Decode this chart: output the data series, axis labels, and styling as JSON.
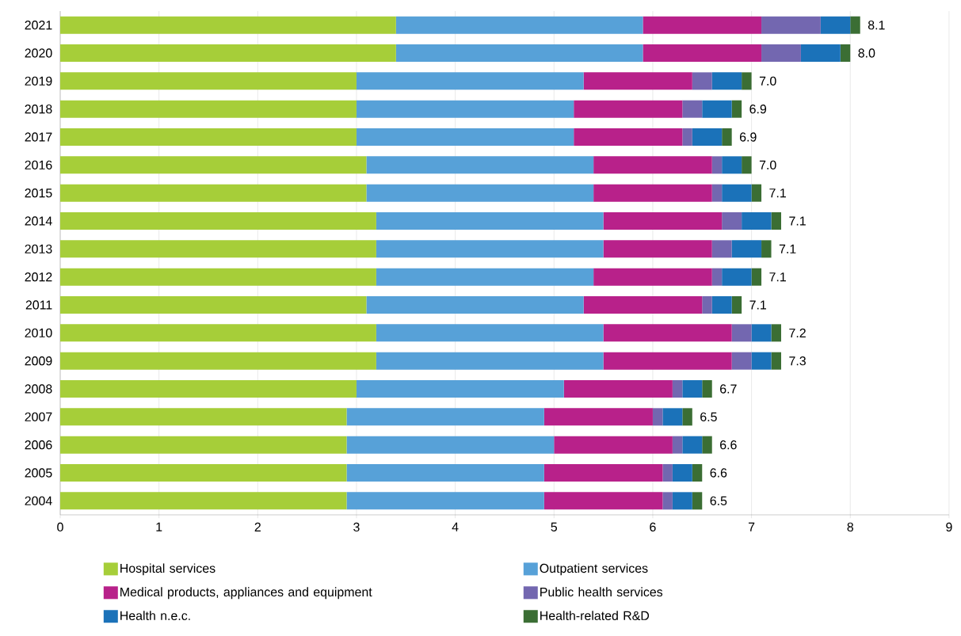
{
  "chart_data": {
    "type": "bar",
    "orientation": "horizontal",
    "stacked": true,
    "categories": [
      "2021",
      "2020",
      "2019",
      "2018",
      "2017",
      "2016",
      "2015",
      "2014",
      "2013",
      "2012",
      "2011",
      "2010",
      "2009",
      "2008",
      "2007",
      "2006",
      "2005",
      "2004"
    ],
    "series": [
      {
        "name": "Hospital services",
        "color": "#a6ce39",
        "values": [
          3.4,
          3.4,
          3.0,
          3.0,
          3.0,
          3.1,
          3.1,
          3.2,
          3.2,
          3.2,
          3.1,
          3.2,
          3.2,
          3.0,
          2.9,
          2.9,
          2.9,
          2.9
        ]
      },
      {
        "name": "Outpatient services",
        "color": "#57a1d8",
        "values": [
          2.5,
          2.5,
          2.3,
          2.2,
          2.2,
          2.3,
          2.3,
          2.3,
          2.3,
          2.2,
          2.2,
          2.3,
          2.3,
          2.1,
          2.0,
          2.1,
          2.0,
          2.0
        ]
      },
      {
        "name": "Medical products, appliances and equipment",
        "color": "#b8218a",
        "values": [
          1.2,
          1.2,
          1.1,
          1.1,
          1.1,
          1.2,
          1.2,
          1.2,
          1.1,
          1.2,
          1.2,
          1.3,
          1.3,
          1.1,
          1.1,
          1.2,
          1.2,
          1.2
        ]
      },
      {
        "name": "Public health services",
        "color": "#7367b0",
        "values": [
          0.6,
          0.4,
          0.2,
          0.2,
          0.1,
          0.1,
          0.1,
          0.2,
          0.2,
          0.1,
          0.1,
          0.2,
          0.2,
          0.1,
          0.1,
          0.1,
          0.1,
          0.1
        ]
      },
      {
        "name": "Health n.e.c.",
        "color": "#1b72b9",
        "values": [
          0.3,
          0.4,
          0.3,
          0.3,
          0.3,
          0.2,
          0.3,
          0.3,
          0.3,
          0.3,
          0.2,
          0.2,
          0.2,
          0.2,
          0.2,
          0.2,
          0.2,
          0.2
        ]
      },
      {
        "name": "Health-related R&D",
        "color": "#3b6e34",
        "values": [
          0.1,
          0.1,
          0.1,
          0.1,
          0.1,
          0.1,
          0.1,
          0.1,
          0.1,
          0.1,
          0.1,
          0.1,
          0.1,
          0.1,
          0.1,
          0.1,
          0.1,
          0.1
        ]
      }
    ],
    "totals": [
      "8.1",
      "8.0",
      "7.0",
      "6.9",
      "6.9",
      "7.0",
      "7.1",
      "7.1",
      "7.1",
      "7.1",
      "7.1",
      "7.2",
      "7.3",
      "6.7",
      "6.5",
      "6.6",
      "6.6",
      "6.5"
    ],
    "xlim": [
      0,
      9
    ],
    "xticks": [
      0,
      1,
      2,
      3,
      4,
      5,
      6,
      7,
      8,
      9
    ],
    "grid": "x",
    "legend": "bottom"
  }
}
